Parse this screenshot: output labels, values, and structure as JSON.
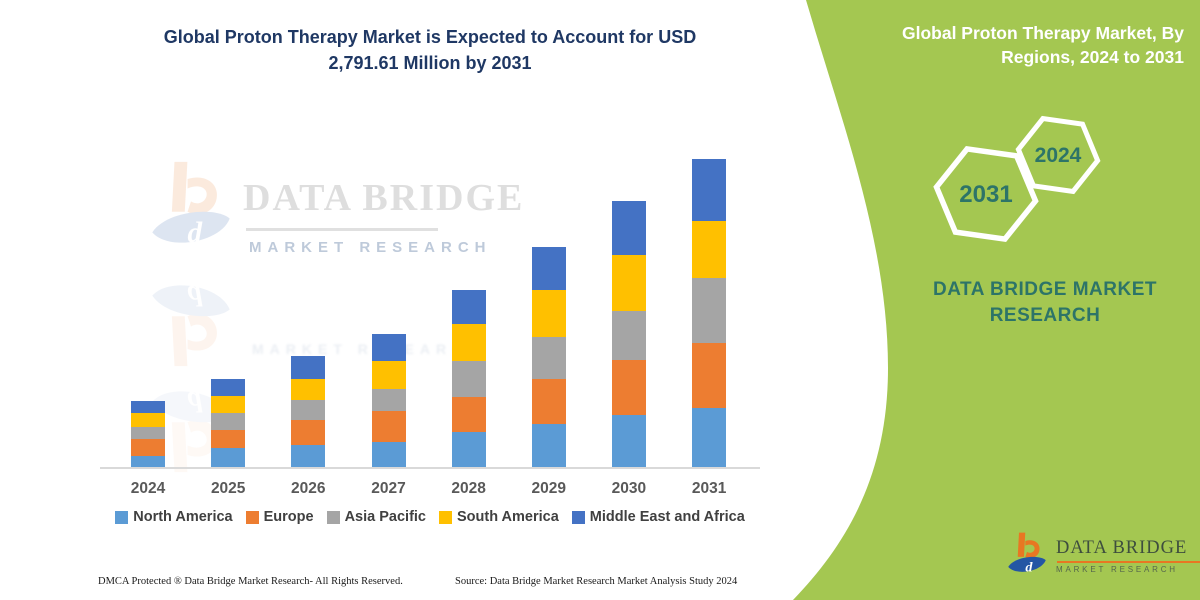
{
  "main": {
    "title": "Global Proton Therapy Market is Expected to Account for USD 2,791.61 Million by 2031"
  },
  "chart_data": {
    "type": "bar",
    "stacked": true,
    "title": "Global Proton Therapy Market is Expected to Account for USD 2,791.61 Million by 2031",
    "categories": [
      "2024",
      "2025",
      "2026",
      "2027",
      "2028",
      "2029",
      "2030",
      "2031"
    ],
    "series": [
      {
        "name": "North America",
        "color": "#5B9BD5",
        "values": [
          100,
          172,
          199,
          227,
          317,
          390,
          471,
          535
        ]
      },
      {
        "name": "Europe",
        "color": "#ED7D31",
        "values": [
          154,
          163,
          227,
          281,
          317,
          408,
          498,
          589
        ]
      },
      {
        "name": "Asia Pacific",
        "color": "#A5A5A5",
        "values": [
          109,
          154,
          181,
          199,
          326,
          381,
          444,
          589
        ]
      },
      {
        "name": "South America",
        "color": "#FFC000",
        "values": [
          127,
          154,
          190,
          254,
          335,
          426,
          507,
          517
        ]
      },
      {
        "name": "Middle East and Africa",
        "color": "#4472C4",
        "values": [
          109,
          154,
          208,
          245,
          308,
          390,
          489,
          562
        ]
      }
    ],
    "totals": [
      599,
      797,
      1005,
      1206,
      1603,
      1995,
      2409,
      2792
    ],
    "unit": "USD Million",
    "values_estimated_from_bar_heights": true,
    "annotated_total_2031": 2791.61,
    "xlabel": "",
    "ylabel": "",
    "ylim": [
      0,
      2900
    ],
    "grid": false,
    "y_axis_visible": false,
    "legend_position": "bottom"
  },
  "watermark": {
    "brand": "DATA BRIDGE",
    "subbrand": "MARKET RESEARCH"
  },
  "footer": {
    "dmca": "DMCA Protected ® Data Bridge Market Research- All Rights Reserved.",
    "source": "Source: Data Bridge Market Research Market Analysis Study 2024"
  },
  "sidebar": {
    "title": "Global Proton Therapy Market, By Regions, 2024 to 2031",
    "hexagons": [
      {
        "label": "2031"
      },
      {
        "label": "2024"
      }
    ],
    "brand": "DATA BRIDGE MARKET RESEARCH",
    "logo": {
      "brand": "DATA BRIDGE",
      "subbrand": "MARKET RESEARCH"
    },
    "colors": {
      "panel_green": "#A4C751",
      "teal_text": "#2D7468",
      "title_navy": "#1F3864"
    }
  },
  "brandmark": {
    "d_letter": "d"
  }
}
